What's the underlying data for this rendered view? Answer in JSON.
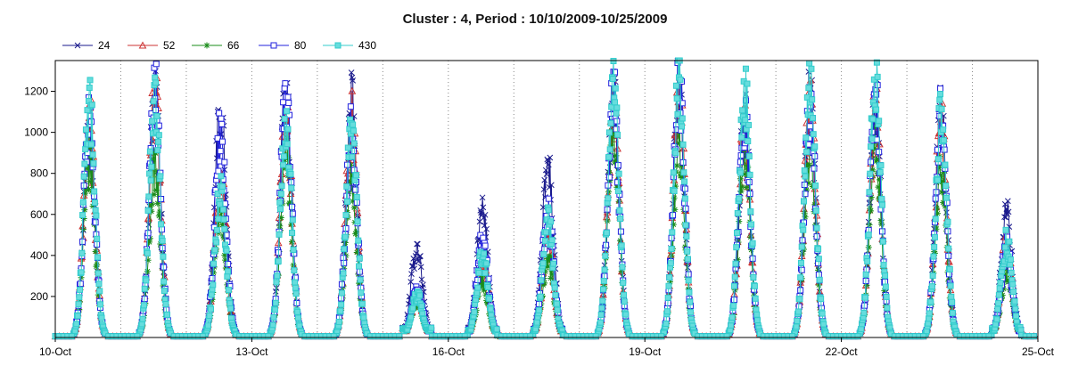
{
  "chart_data": {
    "type": "line",
    "title": "Cluster : 4, Period : 10/10/2009-10/25/2009",
    "xlabel": "",
    "ylabel": "",
    "x_range": [
      "2009-10-10",
      "2009-10-25"
    ],
    "x_tick_labels": [
      "10-Oct",
      "13-Oct",
      "16-Oct",
      "19-Oct",
      "22-Oct",
      "25-Oct"
    ],
    "x_tick_dates": [
      "2009-10-10",
      "2009-10-13",
      "2009-10-16",
      "2009-10-19",
      "2009-10-22",
      "2009-10-25"
    ],
    "y_range": [
      0,
      1350
    ],
    "y_ticks": [
      200,
      400,
      600,
      800,
      1000,
      1200
    ],
    "grid": "vertical dotted lines at day boundaries",
    "legend_position": "top-left",
    "day_dates": [
      "2009-10-10",
      "2009-10-11",
      "2009-10-12",
      "2009-10-13",
      "2009-10-14",
      "2009-10-15",
      "2009-10-16",
      "2009-10-17",
      "2009-10-18",
      "2009-10-19",
      "2009-10-20",
      "2009-10-21",
      "2009-10-22",
      "2009-10-23",
      "2009-10-24"
    ],
    "series": [
      {
        "name": "24",
        "color": "#1a1a8c",
        "marker": "x",
        "daily_peak": [
          1180,
          1290,
          1210,
          1280,
          1220,
          480,
          660,
          910,
          1260,
          1330,
          1160,
          1270,
          1230,
          1190,
          660
        ]
      },
      {
        "name": "52",
        "color": "#cc3333",
        "marker": "triangle",
        "daily_peak": [
          1130,
          1280,
          880,
          1230,
          1160,
          230,
          410,
          520,
          1240,
          1300,
          1120,
          1240,
          1220,
          1130,
          490
        ]
      },
      {
        "name": "66",
        "color": "#1a8c1a",
        "marker": "star",
        "daily_peak": [
          930,
          900,
          660,
          960,
          820,
          180,
          300,
          410,
          1060,
          1010,
          990,
          990,
          990,
          860,
          330
        ]
      },
      {
        "name": "80",
        "color": "#2222dd",
        "marker": "square",
        "daily_peak": [
          1170,
          1310,
          1090,
          1270,
          1100,
          260,
          520,
          660,
          1260,
          1340,
          1180,
          1230,
          1250,
          1180,
          470
        ]
      },
      {
        "name": "430",
        "color": "#33cccc",
        "marker": "square",
        "daily_peak": [
          1220,
          1270,
          780,
          1180,
          1100,
          220,
          450,
          620,
          1280,
          1320,
          1320,
          1330,
          1340,
          1150,
          500
        ]
      }
    ]
  }
}
